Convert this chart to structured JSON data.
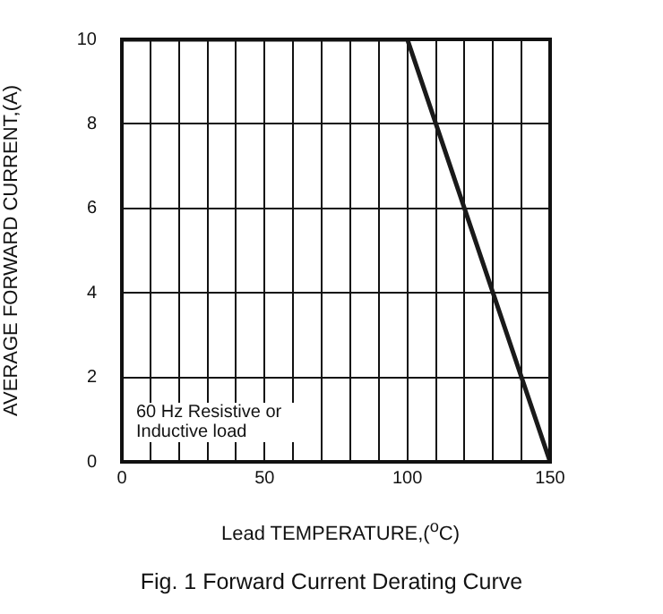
{
  "chart_data": {
    "type": "line",
    "title": "Fig. 1  Forward Current Derating Curve",
    "xlabel": "Lead TEMPERATURE,($^{o}$C)",
    "ylabel": "AVERAGE FORWARD CURRENT,(A)",
    "annotations": [
      "60 Hz Resistive or Inductive load"
    ],
    "x": [
      0,
      100,
      150
    ],
    "series": [
      {
        "color": "#1a1a1a",
        "values": [
          10,
          10,
          0
        ]
      }
    ],
    "xlim": [
      0,
      150
    ],
    "xticks": [
      0,
      {
        "value": 10,
        "label": null
      },
      {
        "value": 20,
        "label": null
      },
      {
        "value": 30,
        "label": null
      },
      {
        "value": 40,
        "label": null
      },
      50,
      {
        "value": 60,
        "label": null
      },
      {
        "value": 70,
        "label": null
      },
      {
        "value": 80,
        "label": null
      },
      {
        "value": 90,
        "label": null
      },
      100,
      {
        "value": 110,
        "label": null
      },
      {
        "value": 120,
        "label": null
      },
      {
        "value": 130,
        "label": null
      },
      {
        "value": 140,
        "label": null
      },
      150
    ],
    "ylim": [
      0,
      10
    ],
    "yticks": [
      0,
      2,
      4,
      6,
      8,
      10
    ],
    "grid": true,
    "legend": false,
    "marker": "none",
    "line_style": "solid"
  }
}
